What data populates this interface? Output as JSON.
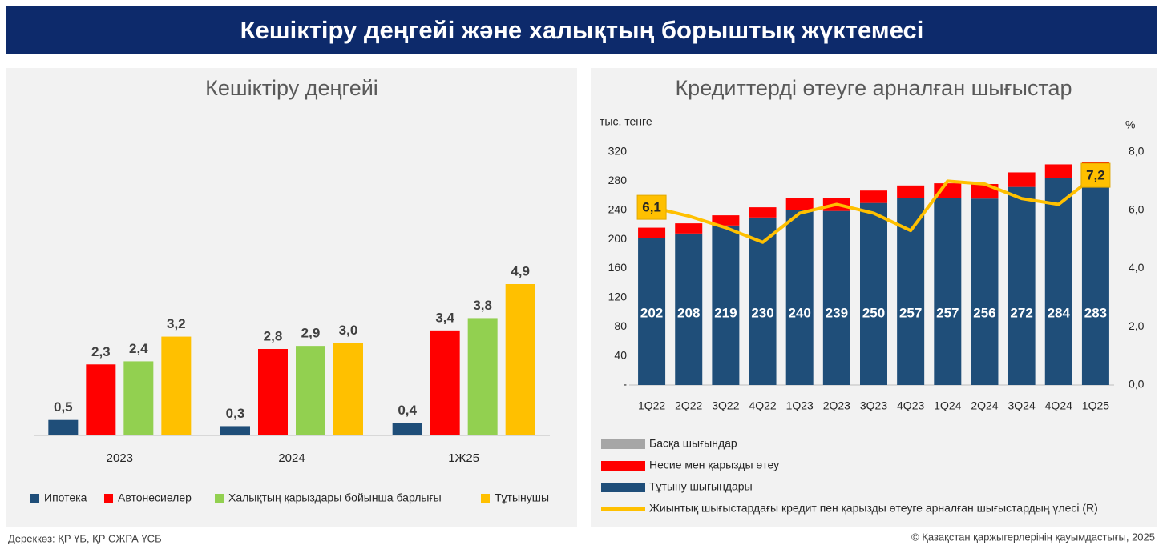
{
  "header": {
    "title": "Кешіктіру деңгейі және халықтың борыштық жүктемесі"
  },
  "chart_data": [
    {
      "type": "bar",
      "title": "Кешіктіру деңгейі",
      "categories": [
        "2023",
        "2024",
        "1Ж25"
      ],
      "series": [
        {
          "name": "Ипотека",
          "color": "#1f4e79",
          "values": [
            0.5,
            0.3,
            0.4
          ],
          "value_labels": [
            "0,5",
            "0,3",
            "0,4"
          ]
        },
        {
          "name": "Автонесиелер",
          "color": "#ff0000",
          "values": [
            2.3,
            2.8,
            3.4
          ],
          "value_labels": [
            "2,3",
            "2,8",
            "3,4"
          ]
        },
        {
          "name": "Халықтың қарыздары бойынша барлығы",
          "color": "#92d050",
          "values": [
            2.4,
            2.9,
            3.8
          ],
          "value_labels": [
            "2,4",
            "2,9",
            "3,8"
          ]
        },
        {
          "name": "Тұтынушы",
          "color": "#ffc000",
          "values": [
            3.2,
            3.0,
            4.9
          ],
          "value_labels": [
            "3,2",
            "3,0",
            "4,9"
          ]
        }
      ]
    },
    {
      "type": "bar",
      "stacked": true,
      "title": "Кредиттерді өтеуге арналған шығыстар",
      "ylabel": "тыс. тенге",
      "y2label": "%",
      "categories": [
        "1Q22",
        "2Q22",
        "3Q22",
        "4Q22",
        "1Q23",
        "2Q23",
        "3Q23",
        "4Q23",
        "1Q24",
        "2Q24",
        "3Q24",
        "4Q24",
        "1Q25"
      ],
      "ylim": [
        0,
        320
      ],
      "yticks": [
        {
          "value": 0,
          "label": "-"
        },
        40,
        80,
        120,
        160,
        200,
        240,
        280,
        320
      ],
      "y2lim": [
        0,
        8
      ],
      "y2ticks": [
        {
          "value": 0,
          "label": "0,0"
        },
        {
          "value": 2,
          "label": "2,0"
        },
        {
          "value": 4,
          "label": "4,0"
        },
        {
          "value": 6,
          "label": "6,0"
        },
        {
          "value": 8,
          "label": "8,0"
        }
      ],
      "series": [
        {
          "name": "Басқа шығындар",
          "color": "#a6a6a6",
          "values": [
            null,
            null,
            null,
            null,
            null,
            null,
            null,
            null,
            null,
            null,
            null,
            null,
            null
          ]
        },
        {
          "name": "Несие мен қарызды өтеу",
          "color": "#ff0000",
          "values": [
            14,
            14,
            14,
            14,
            17,
            18,
            17,
            17,
            20,
            20,
            20,
            19,
            23
          ]
        },
        {
          "name": "Тұтыну шығындары",
          "color": "#1f4e79",
          "values": [
            202,
            208,
            219,
            230,
            240,
            239,
            250,
            257,
            257,
            256,
            272,
            284,
            283
          ],
          "show_labels": true
        },
        {
          "name": "Жиынтық шығыстардағы кредит пен қарызды өтеуге арналған шығыстардың үлесі (R)",
          "color": "#ffc000",
          "type": "line",
          "axis": "y2",
          "values": [
            6.1,
            5.8,
            5.4,
            4.9,
            5.9,
            6.2,
            5.9,
            5.3,
            7.0,
            6.9,
            6.4,
            6.2,
            7.2
          ],
          "value_labels": [
            "6,1",
            null,
            null,
            null,
            null,
            null,
            null,
            null,
            null,
            null,
            null,
            null,
            "7,2"
          ]
        }
      ]
    }
  ],
  "footer": {
    "source": "Дереккөз: ҚР ҰБ, ҚР СЖРА ҰСБ",
    "copyright": "© Қазақстан қаржыгерлерінің қауымдастығы, 2025"
  }
}
